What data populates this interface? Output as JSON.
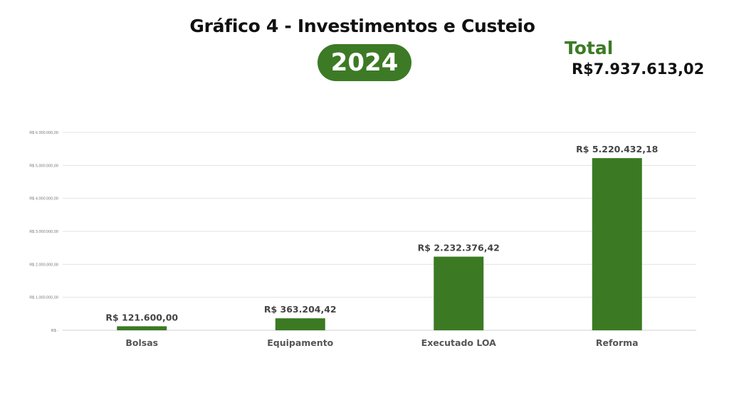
{
  "header": {
    "title": "Gráfico 4 - Investimentos e Custeio",
    "year": "2024",
    "total_label": "Total",
    "total_value": "R$7.937.613,02"
  },
  "colors": {
    "accent": "#3d7a25",
    "bar": "#3b7a23",
    "grid": "#e3e3e3"
  },
  "chart_data": {
    "type": "bar",
    "categories": [
      "Bolsas",
      "Equipamento",
      "Executado LOA",
      "Reforma"
    ],
    "values": [
      121600.0,
      363204.42,
      2232376.42,
      5220432.18
    ],
    "data_labels": [
      "R$ 121.600,00",
      "R$ 363.204,42",
      "R$ 2.232.376,42",
      "R$ 5.220.432,18"
    ],
    "ylim": [
      0,
      6000000
    ],
    "yticks": [
      0,
      1000000,
      2000000,
      3000000,
      4000000,
      5000000,
      6000000
    ],
    "ytick_labels": [
      "R$ -",
      "R$ 1.000.000,00",
      "R$ 2.000.000,00",
      "R$ 3.000.000,00",
      "R$ 4.000.000,00",
      "R$ 5.000.000,00",
      "R$ 6.000.000,00"
    ],
    "grid": true,
    "title": "",
    "xlabel": "",
    "ylabel": ""
  }
}
